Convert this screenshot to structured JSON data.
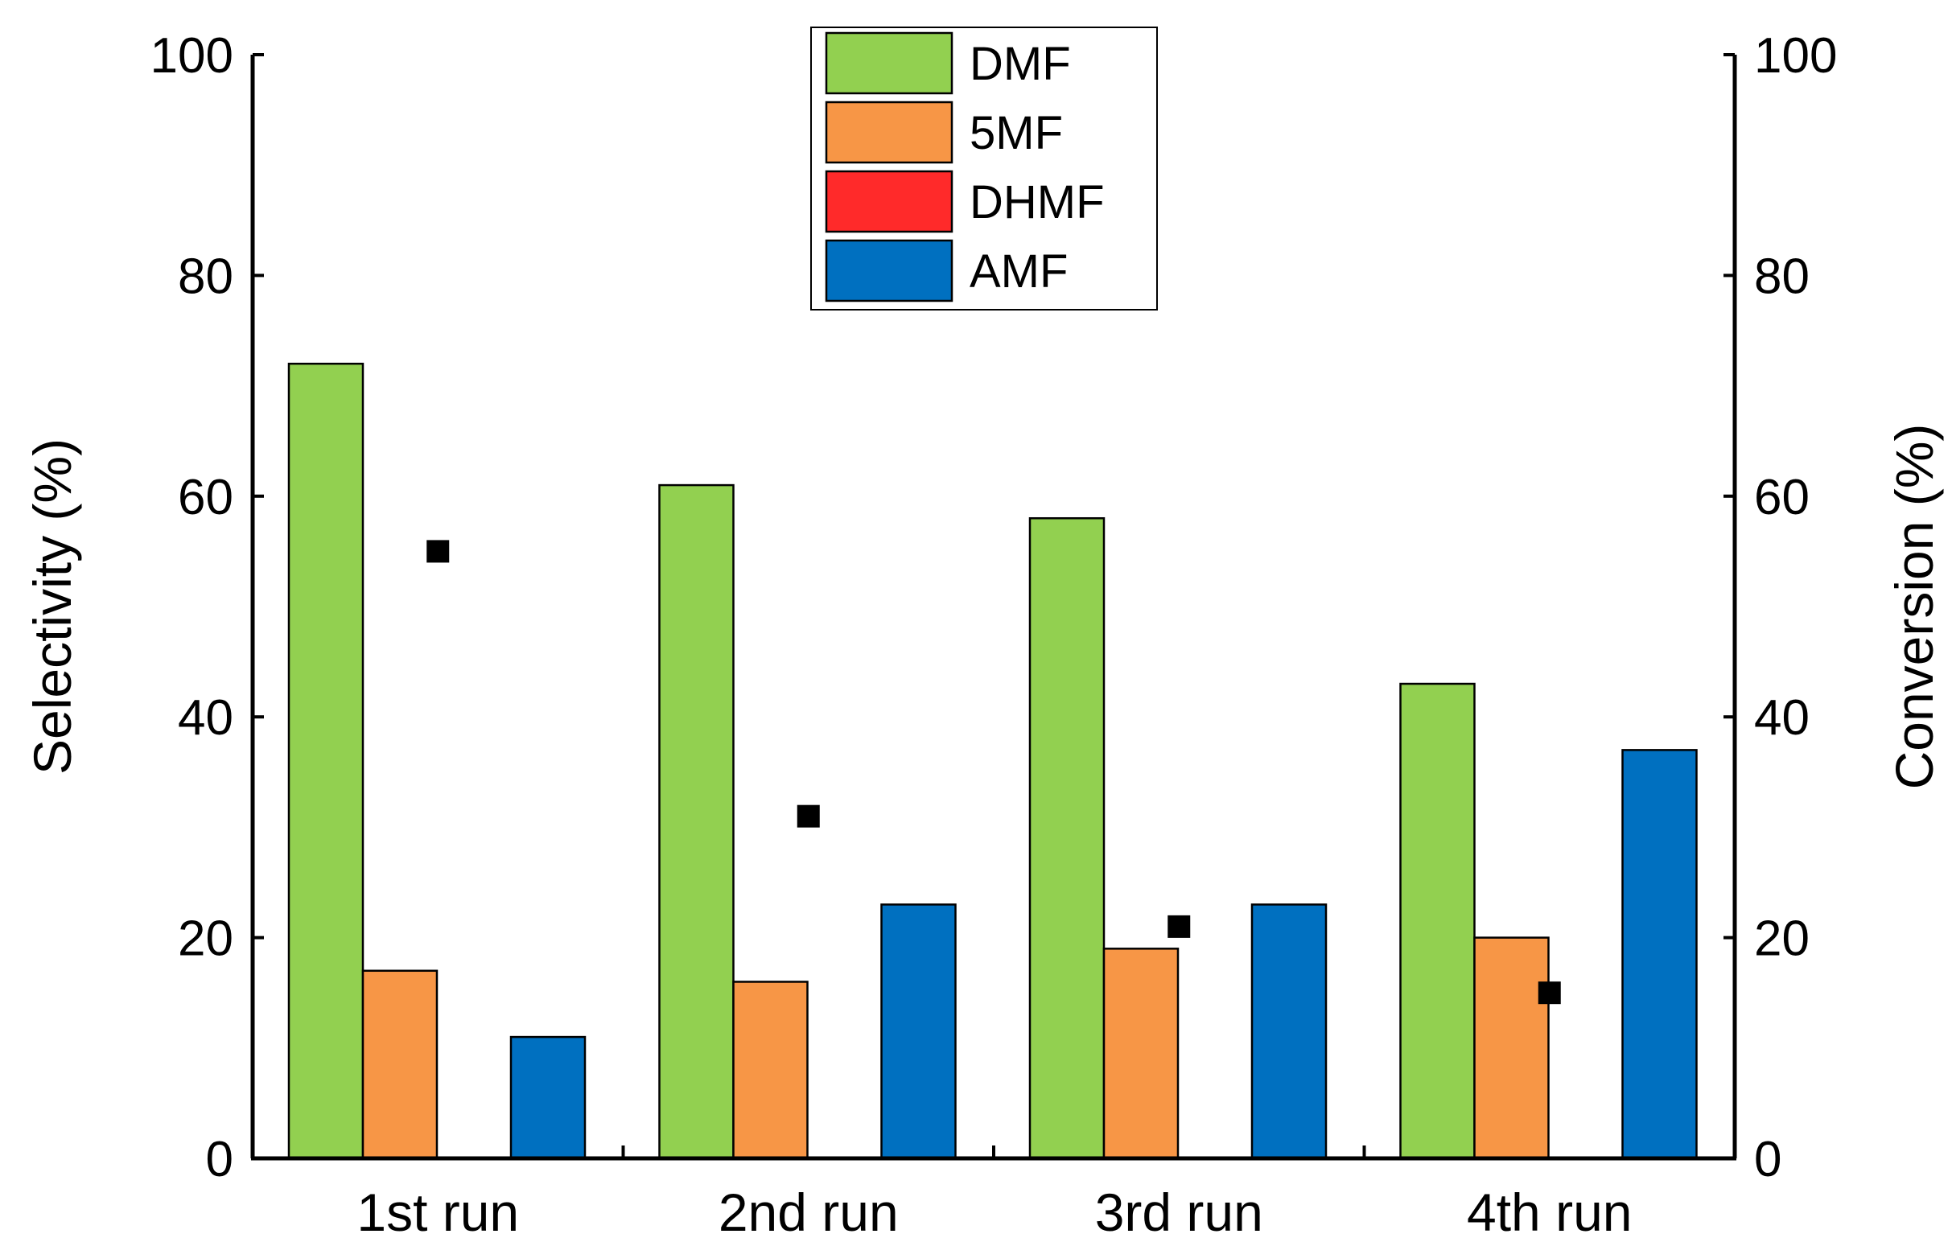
{
  "chart_data": {
    "type": "bar",
    "categories": [
      "1st run",
      "2nd run",
      "3rd run",
      "4th run"
    ],
    "series": [
      {
        "name": "DMF",
        "color": "#92d050",
        "values": [
          72,
          61,
          58,
          43
        ]
      },
      {
        "name": "5MF",
        "color": "#f79646",
        "values": [
          17,
          16,
          19,
          20
        ]
      },
      {
        "name": "DHMF",
        "color": "#ff2a2a",
        "values": [
          0,
          0,
          0,
          0
        ]
      },
      {
        "name": "AMF",
        "color": "#0070c0",
        "values": [
          11,
          23,
          23,
          37
        ]
      }
    ],
    "conversion": {
      "name": "Conversion",
      "color": "#000000",
      "values": [
        55,
        31,
        21,
        15
      ]
    },
    "ylabel": "Selectivity (%)",
    "y2label": "Conversion (%)",
    "ylim": [
      0,
      100
    ],
    "y2lim": [
      0,
      100
    ],
    "yticks": [
      "0",
      "20",
      "40",
      "60",
      "80",
      "100"
    ],
    "y2ticks": [
      "0",
      "20",
      "40",
      "60",
      "80",
      "100"
    ],
    "legend_position": "top-center"
  }
}
